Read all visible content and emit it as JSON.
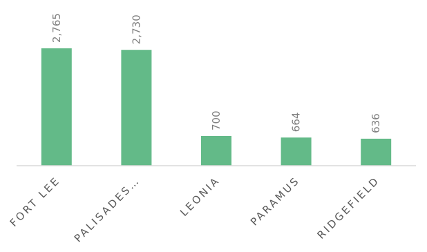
{
  "chart_data": {
    "type": "bar",
    "title": "",
    "xlabel": "",
    "ylabel": "",
    "categories": [
      "FORT LEE",
      "PALISADES…",
      "LEONIA",
      "PARAMUS",
      "RIDGEFIELD"
    ],
    "values": [
      2765,
      2730,
      700,
      664,
      636
    ],
    "value_labels": [
      "2,765",
      "2,730",
      "700",
      "664",
      "636"
    ],
    "ylim": [
      0,
      3000
    ],
    "grid": false,
    "legend": "none",
    "colors": {
      "bar": "#63BA88",
      "axis": "#D9D9D9",
      "value_label": "#7F7F7F",
      "category_label": "#595959"
    }
  }
}
